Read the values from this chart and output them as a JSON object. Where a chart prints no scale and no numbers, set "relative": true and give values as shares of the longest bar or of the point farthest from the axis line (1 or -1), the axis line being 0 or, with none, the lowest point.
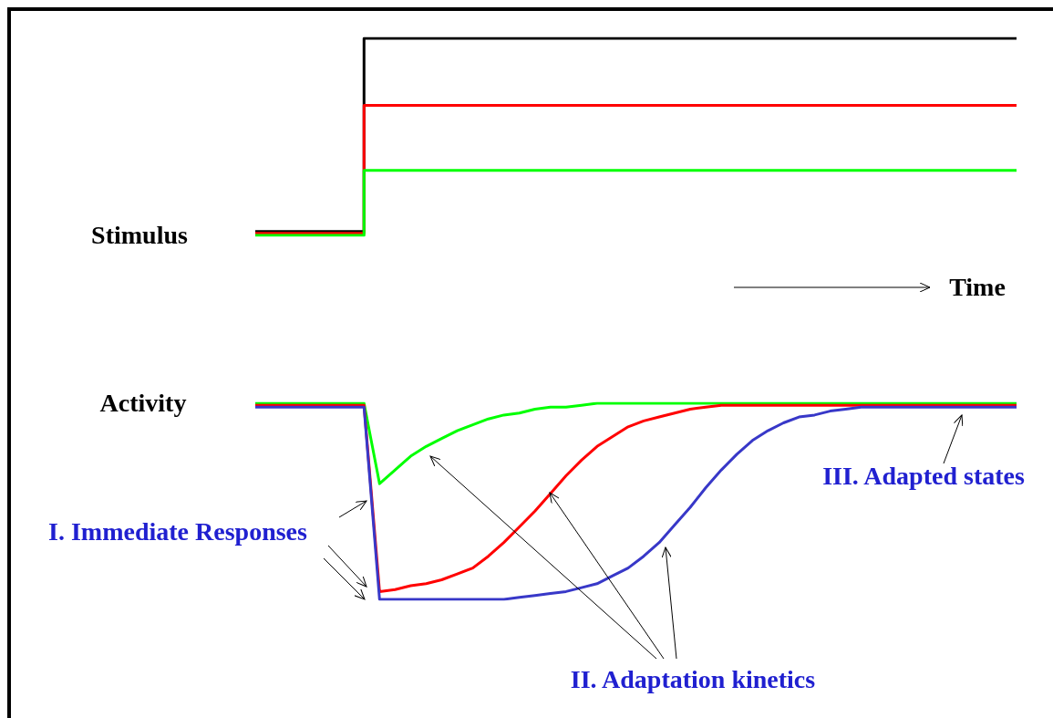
{
  "chart_data": [
    {
      "type": "step",
      "ylabel": "Stimulus",
      "relative": true,
      "marker": "none",
      "annotations": [
        "Time"
      ],
      "categories": [
        null,
        null,
        null,
        null,
        null,
        null,
        null,
        null,
        null,
        null,
        null,
        null,
        null,
        null,
        null,
        null,
        null,
        null,
        null,
        null,
        null,
        null,
        null,
        null,
        null,
        null,
        null,
        null,
        null,
        null,
        null,
        null,
        null,
        null,
        null,
        null,
        null,
        null,
        null,
        null,
        null,
        null,
        null,
        null,
        null,
        null,
        null,
        null,
        null,
        null
      ],
      "series": [
        {
          "color": "#000000",
          "values": [
            0.02,
            0.02,
            0.02,
            0.02,
            0.02,
            0.02,
            0.02,
            1,
            1,
            1,
            1,
            1,
            1,
            1,
            1,
            1,
            1,
            1,
            1,
            1,
            1,
            1,
            1,
            1,
            1,
            1,
            1,
            1,
            1,
            1,
            1,
            1,
            1,
            1,
            1,
            1,
            1,
            1,
            1,
            1,
            1,
            1,
            1,
            1,
            1,
            1,
            1,
            1,
            1,
            1
          ]
        },
        {
          "color": "#ff0000",
          "values": [
            0.01,
            0.01,
            0.01,
            0.01,
            0.01,
            0.01,
            0.01,
            0.66,
            0.66,
            0.66,
            0.66,
            0.66,
            0.66,
            0.66,
            0.66,
            0.66,
            0.66,
            0.66,
            0.66,
            0.66,
            0.66,
            0.66,
            0.66,
            0.66,
            0.66,
            0.66,
            0.66,
            0.66,
            0.66,
            0.66,
            0.66,
            0.66,
            0.66,
            0.66,
            0.66,
            0.66,
            0.66,
            0.66,
            0.66,
            0.66,
            0.66,
            0.66,
            0.66,
            0.66,
            0.66,
            0.66,
            0.66,
            0.66,
            0.66,
            0.66
          ]
        },
        {
          "color": "#00ff00",
          "values": [
            0,
            0,
            0,
            0,
            0,
            0,
            0,
            0.33,
            0.33,
            0.33,
            0.33,
            0.33,
            0.33,
            0.33,
            0.33,
            0.33,
            0.33,
            0.33,
            0.33,
            0.33,
            0.33,
            0.33,
            0.33,
            0.33,
            0.33,
            0.33,
            0.33,
            0.33,
            0.33,
            0.33,
            0.33,
            0.33,
            0.33,
            0.33,
            0.33,
            0.33,
            0.33,
            0.33,
            0.33,
            0.33,
            0.33,
            0.33,
            0.33,
            0.33,
            0.33,
            0.33,
            0.33,
            0.33,
            0.33,
            0.33
          ]
        }
      ]
    },
    {
      "type": "line",
      "ylabel": "Activity",
      "relative": true,
      "marker": "none",
      "annotations": [
        "I. Immediate Responses",
        "II. Adaptation kinetics",
        "III. Adapted states"
      ],
      "categories": [
        null,
        null,
        null,
        null,
        null,
        null,
        null,
        null,
        null,
        null,
        null,
        null,
        null,
        null,
        null,
        null,
        null,
        null,
        null,
        null,
        null,
        null,
        null,
        null,
        null,
        null,
        null,
        null,
        null,
        null,
        null,
        null,
        null,
        null,
        null,
        null,
        null,
        null,
        null,
        null,
        null,
        null,
        null,
        null,
        null,
        null,
        null,
        null,
        null,
        null
      ],
      "series": [
        {
          "color": "#00ff00",
          "values": [
            1,
            1,
            1,
            1,
            1,
            1,
            1,
            1,
            0.59,
            0.66,
            0.73,
            0.78,
            0.82,
            0.86,
            0.89,
            0.92,
            0.94,
            0.95,
            0.97,
            0.98,
            0.98,
            0.99,
            1,
            1,
            1,
            1,
            1,
            1,
            1,
            1,
            1,
            1,
            1,
            1,
            1,
            1,
            1,
            1,
            1,
            1,
            1,
            1,
            1,
            1,
            1,
            1,
            1,
            1,
            1,
            1
          ]
        },
        {
          "color": "#ff0000",
          "values": [
            0.99,
            0.99,
            0.99,
            0.99,
            0.99,
            0.99,
            0.99,
            0.99,
            0.04,
            0.05,
            0.07,
            0.08,
            0.1,
            0.13,
            0.16,
            0.22,
            0.29,
            0.37,
            0.45,
            0.54,
            0.63,
            0.71,
            0.78,
            0.83,
            0.88,
            0.91,
            0.93,
            0.95,
            0.97,
            0.98,
            0.99,
            0.99,
            0.99,
            0.99,
            0.99,
            0.99,
            0.99,
            0.99,
            0.99,
            0.99,
            0.99,
            0.99,
            0.99,
            0.99,
            0.99,
            0.99,
            0.99,
            0.99,
            0.99,
            0.99
          ]
        },
        {
          "color": "#3838c8",
          "values": [
            0.98,
            0.98,
            0.98,
            0.98,
            0.98,
            0.98,
            0.98,
            0.98,
            0,
            0,
            0,
            0,
            0,
            0,
            0,
            0,
            0,
            0.01,
            0.02,
            0.03,
            0.04,
            0.06,
            0.08,
            0.12,
            0.16,
            0.22,
            0.29,
            0.38,
            0.47,
            0.57,
            0.66,
            0.74,
            0.81,
            0.86,
            0.9,
            0.93,
            0.94,
            0.96,
            0.97,
            0.98,
            0.98,
            0.98,
            0.98,
            0.98,
            0.98,
            0.98,
            0.98,
            0.98,
            0.98,
            0.98
          ]
        }
      ]
    }
  ]
}
